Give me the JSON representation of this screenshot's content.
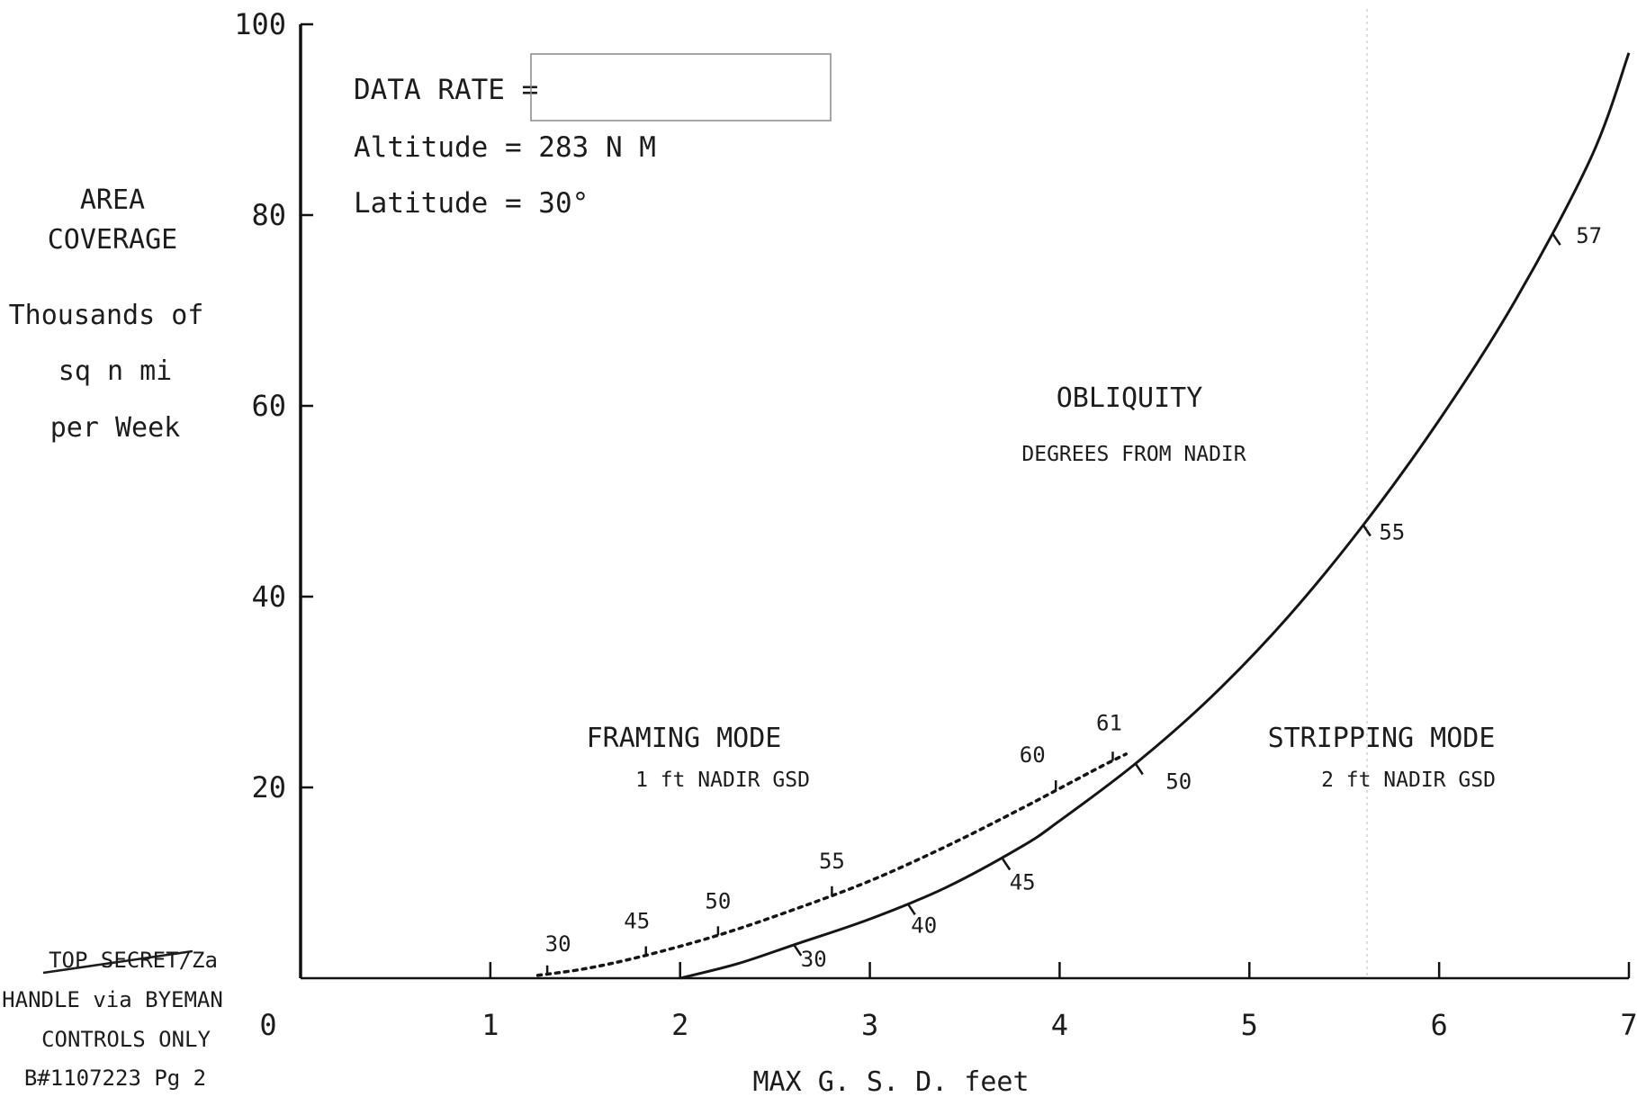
{
  "chart_data": {
    "type": "line",
    "xlabel": "MAX G. S. D. feet",
    "ylabel": [
      "AREA",
      "COVERAGE",
      "Thousands of",
      "sq n mi",
      "per Week"
    ],
    "xlim": [
      0,
      7
    ],
    "ylim": [
      0,
      100
    ],
    "x_ticks": [
      "0",
      "1",
      "2",
      "3",
      "4",
      "5",
      "6",
      "7"
    ],
    "y_ticks": [
      "20",
      "40",
      "60",
      "80",
      "100"
    ],
    "grid": false,
    "series": [
      {
        "name": "FRAMING MODE",
        "style": "dotted",
        "x": [
          1.25,
          1.5,
          1.8,
          2.2,
          2.6,
          3.0,
          3.4,
          3.8,
          4.2,
          4.35
        ],
        "y": [
          0.3,
          1.0,
          2.3,
          4.5,
          7.2,
          10.2,
          13.8,
          17.8,
          22.0,
          23.5
        ],
        "points": [
          {
            "x": 1.3,
            "y": 0.4,
            "label": "30"
          },
          {
            "x": 1.82,
            "y": 2.4,
            "label": "45"
          },
          {
            "x": 2.2,
            "y": 4.5,
            "label": "50"
          },
          {
            "x": 2.8,
            "y": 8.7,
            "label": "55"
          },
          {
            "x": 3.98,
            "y": 19.8,
            "label": "60"
          },
          {
            "x": 4.28,
            "y": 22.8,
            "label": "61"
          }
        ]
      },
      {
        "name": "STRIPPING MODE",
        "style": "solid",
        "x": [
          2.0,
          2.3,
          2.6,
          3.0,
          3.4,
          3.8,
          4.0,
          4.4,
          4.8,
          5.2,
          5.6,
          6.0,
          6.4,
          6.8,
          7.0
        ],
        "y": [
          0.0,
          1.5,
          3.5,
          6.2,
          9.5,
          13.8,
          16.5,
          22.5,
          29.5,
          37.8,
          47.5,
          58.5,
          71.0,
          86.0,
          97.0
        ],
        "points": [
          {
            "x": 2.6,
            "y": 3.5,
            "label": "30"
          },
          {
            "x": 3.2,
            "y": 7.8,
            "label": "40"
          },
          {
            "x": 3.7,
            "y": 12.5,
            "label": "45"
          },
          {
            "x": 4.4,
            "y": 22.5,
            "label": "50"
          },
          {
            "x": 5.6,
            "y": 47.5,
            "label": "55"
          },
          {
            "x": 6.6,
            "y": 78.0,
            "label": "57"
          }
        ]
      }
    ]
  },
  "annotations": {
    "data_rate_label": "DATA RATE =",
    "altitude": "Altitude = 283 N M",
    "latitude": "Latitude = 30°",
    "obliquity_title": "OBLIQUITY",
    "obliquity_sub": "DEGREES FROM NADIR",
    "framing_title": "FRAMING MODE",
    "framing_sub": "1 ft NADIR GSD",
    "stripping_title": "STRIPPING MODE",
    "stripping_sub": "2 ft NADIR GSD"
  },
  "classification": {
    "line1": "TOP SECRET/Za",
    "line2": "HANDLE via BYEMAN",
    "line3": "CONTROLS ONLY",
    "line4": "B#1107223 Pg 2"
  }
}
